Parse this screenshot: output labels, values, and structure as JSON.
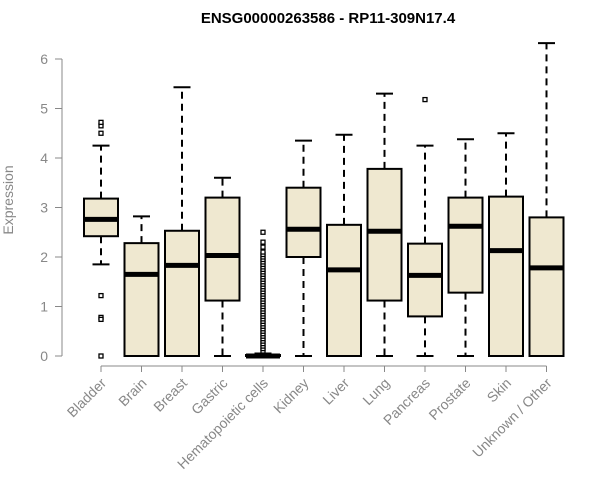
{
  "chart_data": {
    "type": "boxplot",
    "title": "ENSG00000263586 - RP11-309N17.4",
    "xlabel": "",
    "ylabel": "Expression",
    "ylim": [
      0,
      6.3
    ],
    "yticks": [
      0,
      1,
      2,
      3,
      4,
      5,
      6
    ],
    "categories": [
      "Bladder",
      "Brain",
      "Breast",
      "Gastric",
      "Hematopoietic cells",
      "Kidney",
      "Liver",
      "Lung",
      "Pancreas",
      "Prostate",
      "Skin",
      "Unknown / Other"
    ],
    "boxes": [
      {
        "category": "Bladder",
        "min": 1.85,
        "q1": 2.42,
        "median": 2.76,
        "q3": 3.18,
        "max": 4.25,
        "outliers": [
          4.5,
          4.65,
          4.72,
          1.22,
          0.78,
          0.74,
          0.0
        ]
      },
      {
        "category": "Brain",
        "min": 0.0,
        "q1": 0.0,
        "median": 1.65,
        "q3": 2.28,
        "max": 2.82,
        "outliers": []
      },
      {
        "category": "Breast",
        "min": 0.0,
        "q1": 0.0,
        "median": 1.83,
        "q3": 2.53,
        "max": 5.43,
        "outliers": []
      },
      {
        "category": "Gastric",
        "min": 0.0,
        "q1": 1.12,
        "median": 2.03,
        "q3": 3.2,
        "max": 3.6,
        "outliers": []
      },
      {
        "category": "Hematopoietic cells",
        "min": 0.0,
        "q1": 0.0,
        "median": 0.0,
        "q3": 0.02,
        "max": 0.05,
        "outliers": [
          0.1,
          0.15,
          0.2,
          0.25,
          0.3,
          0.35,
          0.4,
          0.45,
          0.5,
          0.55,
          0.6,
          0.65,
          0.7,
          0.75,
          0.8,
          0.85,
          0.9,
          0.95,
          1.0,
          1.05,
          1.1,
          1.15,
          1.2,
          1.25,
          1.3,
          1.35,
          1.4,
          1.45,
          1.5,
          1.55,
          1.6,
          1.65,
          1.7,
          1.75,
          1.8,
          1.85,
          1.9,
          1.95,
          2.0,
          2.05,
          2.1,
          2.2,
          2.3,
          2.5
        ]
      },
      {
        "category": "Kidney",
        "min": 0.0,
        "q1": 2.0,
        "median": 2.56,
        "q3": 3.4,
        "max": 4.35,
        "outliers": []
      },
      {
        "category": "Liver",
        "min": 0.0,
        "q1": 0.0,
        "median": 1.74,
        "q3": 2.65,
        "max": 4.47,
        "outliers": []
      },
      {
        "category": "Lung",
        "min": 0.0,
        "q1": 1.12,
        "median": 2.52,
        "q3": 3.78,
        "max": 5.3,
        "outliers": []
      },
      {
        "category": "Pancreas",
        "min": 0.0,
        "q1": 0.8,
        "median": 1.63,
        "q3": 2.27,
        "max": 4.25,
        "outliers": [
          5.18
        ]
      },
      {
        "category": "Prostate",
        "min": 0.0,
        "q1": 1.28,
        "median": 2.62,
        "q3": 3.2,
        "max": 4.38,
        "outliers": []
      },
      {
        "category": "Skin",
        "min": 0.0,
        "q1": 0.0,
        "median": 2.13,
        "q3": 3.22,
        "max": 4.5,
        "outliers": []
      },
      {
        "category": "Unknown / Other",
        "min": 0.0,
        "q1": 0.0,
        "median": 1.78,
        "q3": 2.8,
        "max": 6.32,
        "outliers": []
      }
    ],
    "colors": {
      "box_fill": "#efe8d0",
      "axis": "#888888",
      "line": "#000000"
    },
    "grid": false,
    "legend": "none"
  }
}
